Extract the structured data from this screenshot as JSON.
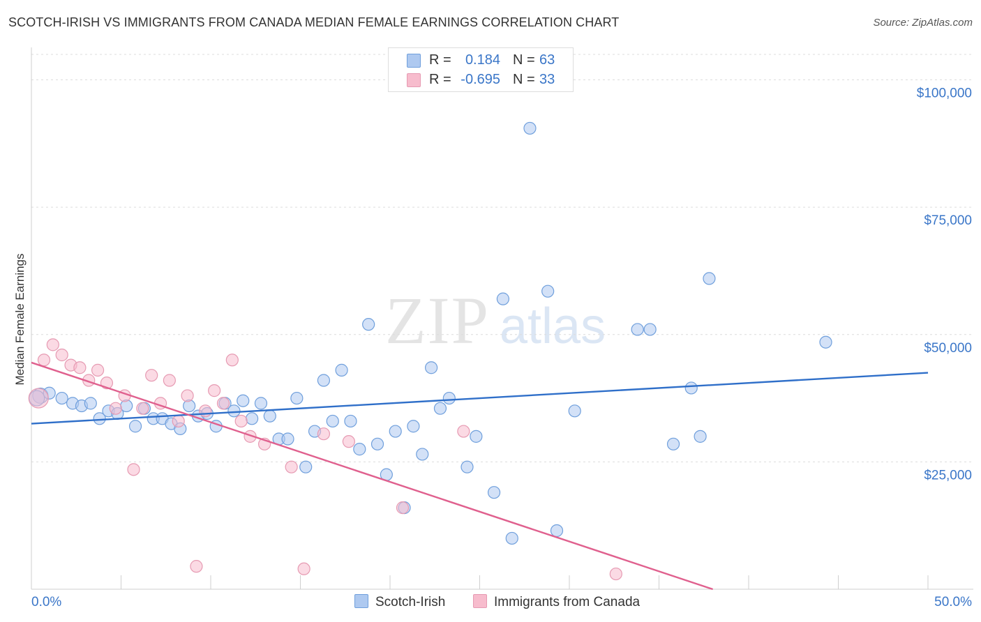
{
  "title": "SCOTCH-IRISH VS IMMIGRANTS FROM CANADA MEDIAN FEMALE EARNINGS CORRELATION CHART",
  "source": "Source: ZipAtlas.com",
  "watermark": {
    "zip": "ZIP",
    "atlas": "atlas"
  },
  "legend": {
    "rows": [
      {
        "r_label": "R =",
        "r_value": "0.184",
        "n_label": "N =",
        "n_value": "63",
        "color": "#aec9f0"
      },
      {
        "r_label": "R =",
        "r_value": "-0.695",
        "n_label": "N =",
        "n_value": "33",
        "color": "#f7bccd"
      }
    ]
  },
  "bottom_legend": [
    {
      "label": "Scotch-Irish",
      "color": "#aec9f0"
    },
    {
      "label": "Immigrants from Canada",
      "color": "#f7bccd"
    }
  ],
  "chart_data": {
    "type": "scatter",
    "ylabel": "Median Female Earnings",
    "xlim": [
      0,
      50
    ],
    "ylim": [
      0,
      105000
    ],
    "x_tick_labels": [
      "0.0%",
      "50.0%"
    ],
    "y_ticks": [
      25000,
      50000,
      75000,
      100000
    ],
    "y_tick_labels": [
      "$25,000",
      "$50,000",
      "$75,000",
      "$100,000"
    ],
    "grid": true,
    "series": [
      {
        "name": "Scotch-Irish",
        "color": "#aec9f0",
        "stroke": "#6f9fdc",
        "line_color": "#2f6fc9",
        "trend": [
          [
            0,
            32500
          ],
          [
            50,
            42500
          ]
        ],
        "points": [
          [
            0.5,
            38000
          ],
          [
            1.0,
            38500
          ],
          [
            1.7,
            37500
          ],
          [
            2.3,
            36500
          ],
          [
            2.8,
            36000
          ],
          [
            3.3,
            36500
          ],
          [
            3.8,
            33500
          ],
          [
            4.3,
            35000
          ],
          [
            4.8,
            34500
          ],
          [
            5.3,
            36000
          ],
          [
            5.8,
            32000
          ],
          [
            6.3,
            35500
          ],
          [
            6.8,
            33500
          ],
          [
            7.3,
            33500
          ],
          [
            7.8,
            32500
          ],
          [
            8.3,
            31500
          ],
          [
            8.8,
            36000
          ],
          [
            9.3,
            34000
          ],
          [
            9.8,
            34500
          ],
          [
            10.3,
            32000
          ],
          [
            10.8,
            36500
          ],
          [
            11.3,
            35000
          ],
          [
            11.8,
            37000
          ],
          [
            12.3,
            33500
          ],
          [
            12.8,
            36500
          ],
          [
            13.3,
            34000
          ],
          [
            13.8,
            29500
          ],
          [
            14.3,
            29500
          ],
          [
            14.8,
            37500
          ],
          [
            15.3,
            24000
          ],
          [
            15.8,
            31000
          ],
          [
            16.3,
            41000
          ],
          [
            16.8,
            33000
          ],
          [
            17.3,
            43000
          ],
          [
            17.8,
            33000
          ],
          [
            18.3,
            27500
          ],
          [
            18.8,
            52000
          ],
          [
            19.3,
            28500
          ],
          [
            19.8,
            22500
          ],
          [
            20.3,
            31000
          ],
          [
            20.8,
            16000
          ],
          [
            21.3,
            32000
          ],
          [
            21.8,
            26500
          ],
          [
            22.3,
            43500
          ],
          [
            22.8,
            35500
          ],
          [
            23.3,
            37500
          ],
          [
            24.3,
            24000
          ],
          [
            24.8,
            30000
          ],
          [
            25.8,
            19000
          ],
          [
            26.3,
            57000
          ],
          [
            26.8,
            10000
          ],
          [
            27.8,
            90500
          ],
          [
            28.8,
            58500
          ],
          [
            29.3,
            11500
          ],
          [
            30.3,
            35000
          ],
          [
            33.8,
            51000
          ],
          [
            34.5,
            51000
          ],
          [
            35.8,
            28500
          ],
          [
            36.8,
            39500
          ],
          [
            37.3,
            30000
          ],
          [
            37.8,
            61000
          ],
          [
            44.3,
            48500
          ],
          [
            0.3,
            37500
          ]
        ]
      },
      {
        "name": "Immigrants from Canada",
        "color": "#f7bccd",
        "stroke": "#e69ab2",
        "line_color": "#e0608e",
        "trend": [
          [
            0,
            44500
          ],
          [
            38,
            0
          ]
        ],
        "points": [
          [
            0.4,
            37500
          ],
          [
            0.7,
            45000
          ],
          [
            1.2,
            48000
          ],
          [
            1.7,
            46000
          ],
          [
            2.2,
            44000
          ],
          [
            2.7,
            43500
          ],
          [
            3.2,
            41000
          ],
          [
            3.7,
            43000
          ],
          [
            4.2,
            40500
          ],
          [
            4.7,
            35500
          ],
          [
            5.2,
            38000
          ],
          [
            5.7,
            23500
          ],
          [
            6.2,
            35500
          ],
          [
            6.7,
            42000
          ],
          [
            7.2,
            36500
          ],
          [
            7.7,
            41000
          ],
          [
            8.2,
            33000
          ],
          [
            8.7,
            38000
          ],
          [
            9.2,
            4500
          ],
          [
            9.7,
            35000
          ],
          [
            10.2,
            39000
          ],
          [
            10.7,
            36500
          ],
          [
            11.2,
            45000
          ],
          [
            11.7,
            33000
          ],
          [
            12.2,
            30000
          ],
          [
            13.0,
            28500
          ],
          [
            14.5,
            24000
          ],
          [
            15.2,
            4000
          ],
          [
            16.3,
            30500
          ],
          [
            17.7,
            29000
          ],
          [
            20.7,
            16000
          ],
          [
            24.1,
            31000
          ],
          [
            32.6,
            3000
          ]
        ]
      }
    ]
  }
}
